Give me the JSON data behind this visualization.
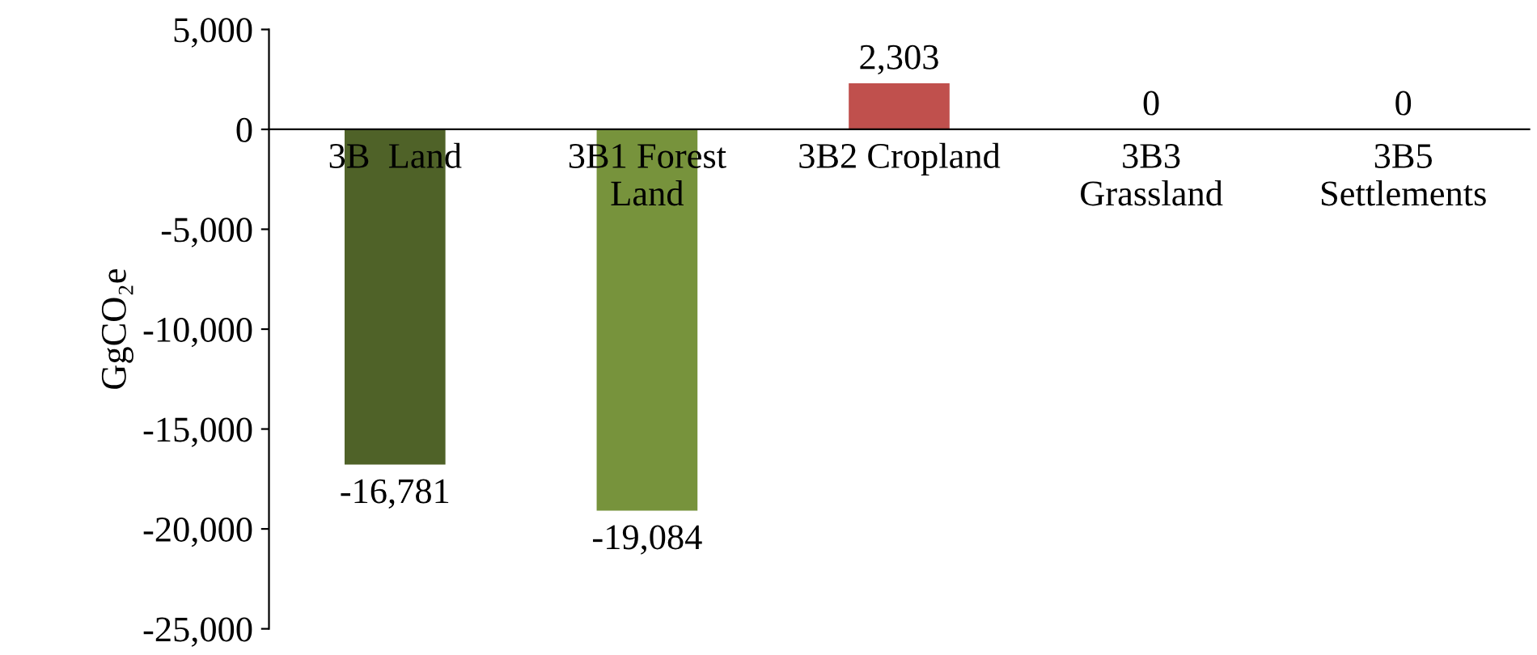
{
  "chart_data": {
    "type": "bar",
    "ylabel": "GgCO₂e",
    "categories": [
      "3B  Land",
      "3B1 Forest\nLand",
      "3B2 Cropland",
      "3B3\nGrassland",
      "3B5\nSettlements"
    ],
    "values": [
      -16781,
      -19084,
      2303,
      0,
      0
    ],
    "colors": [
      "#4f6228",
      "#77933c",
      "#c0504d",
      "#c0504d",
      "#c0504d"
    ],
    "value_labels": [
      "-16,781",
      "-19,084",
      "2,303",
      "0",
      "0"
    ],
    "ylim": [
      -25000,
      5000
    ],
    "yticks": [
      {
        "value": -25000,
        "label": "-25,000"
      },
      {
        "value": -20000,
        "label": "-20,000"
      },
      {
        "value": -15000,
        "label": "-15,000"
      },
      {
        "value": -10000,
        "label": "-10,000"
      },
      {
        "value": -5000,
        "label": "-5,000"
      },
      0,
      {
        "value": 5000,
        "label": "5,000"
      }
    ],
    "grid": false,
    "legend": false
  }
}
